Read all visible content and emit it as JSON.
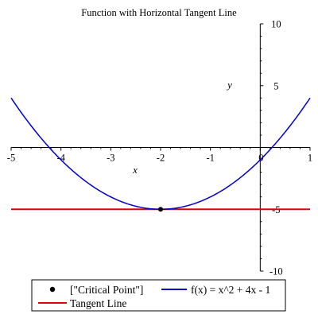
{
  "chart_data": {
    "type": "line",
    "title": "Function with Horizontal Tangent Line",
    "xlabel": "x",
    "ylabel": "y",
    "xlim": [
      -5,
      1
    ],
    "ylim": [
      -10,
      10
    ],
    "x_ticks": [
      -5,
      -4,
      -3,
      -2,
      -1,
      0,
      1
    ],
    "x_tick_labels": [
      "-5",
      "-4",
      "-3",
      "-2",
      "-1",
      "0",
      "1"
    ],
    "y_ticks": [
      -10,
      -5,
      5,
      10
    ],
    "y_tick_labels": [
      "-10",
      "-5",
      "5",
      "10"
    ],
    "grid": false,
    "legend_position": "bottom",
    "series": [
      {
        "name": "f(x) = x^2 + 4x - 1",
        "kind": "curve",
        "expression": "x^2 + 4x - 1",
        "color": "#0000c8",
        "x": [
          -5,
          -4.5,
          -4,
          -3.5,
          -3,
          -2.5,
          -2,
          -1.5,
          -1,
          -0.5,
          0,
          0.5,
          1
        ],
        "y": [
          4,
          1.25,
          -1,
          -2.75,
          -4,
          -4.75,
          -5,
          -4.75,
          -4,
          -2.75,
          -1,
          1.25,
          4
        ]
      },
      {
        "name": "Tangent Line",
        "kind": "line",
        "color": "#e00000",
        "x": [
          -5,
          1
        ],
        "y": [
          -5,
          -5
        ]
      },
      {
        "name": "[\"Critical Point\"]",
        "kind": "point",
        "color": "#000000",
        "x": [
          -2
        ],
        "y": [
          -5
        ]
      }
    ],
    "legend": [
      {
        "label": "[\"Critical Point\"]",
        "marker": "point",
        "color": "#000000"
      },
      {
        "label": "f(x) = x^2 + 4x - 1",
        "marker": "line",
        "color": "#0000c8"
      },
      {
        "label": "Tangent Line",
        "marker": "line",
        "color": "#e00000"
      }
    ]
  }
}
